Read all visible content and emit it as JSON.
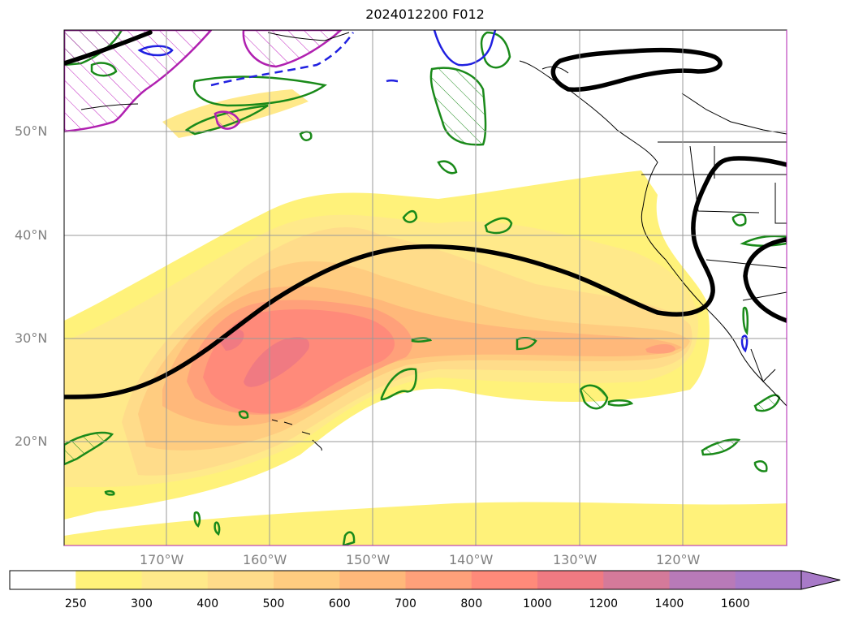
{
  "title": "2024012200 F012",
  "lat_labels": [
    "50°N",
    "40°N",
    "30°N",
    "20°N"
  ],
  "lon_labels": [
    "170°W",
    "160°W",
    "150°W",
    "140°W",
    "130°W",
    "120°W"
  ],
  "colorbar": {
    "ticks": [
      "250",
      "300",
      "400",
      "500",
      "600",
      "700",
      "800",
      "1000",
      "1200",
      "1400",
      "1600"
    ],
    "colors": [
      "#ffffff",
      "#fff27a",
      "#ffe98a",
      "#ffdc8a",
      "#ffcc80",
      "#ffb87a",
      "#ffa07a",
      "#ff8a7a",
      "#f07a82",
      "#d47a9a",
      "#b87ab8",
      "#a87ac8"
    ],
    "extend": "max"
  }
}
